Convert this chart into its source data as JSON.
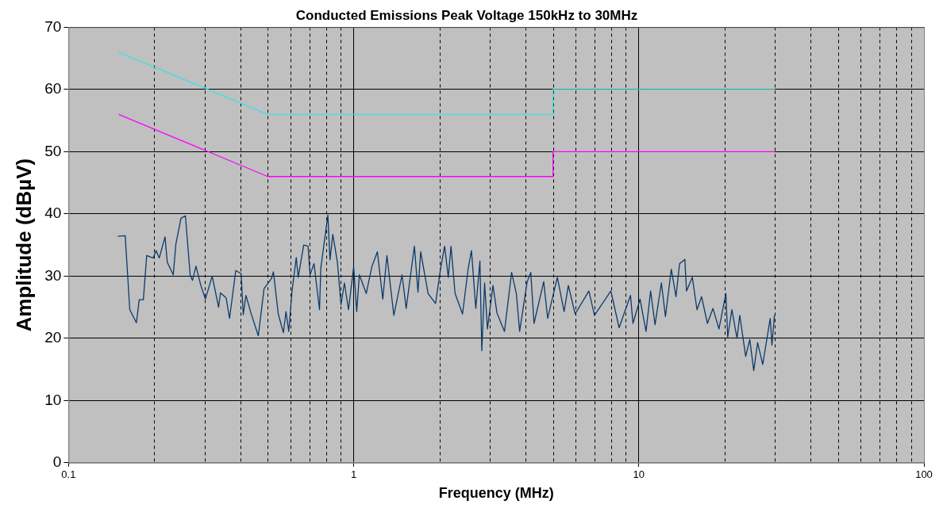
{
  "chart_data": {
    "type": "line",
    "title": "Conducted Emissions Peak Voltage 150kHz to 30MHz",
    "xlabel": "Frequency (MHz)",
    "ylabel": "Amplitude (dBµV)",
    "log": "x",
    "grid": true,
    "marker": "none",
    "line_style": "solid",
    "xlim": [
      0.1,
      100
    ],
    "xticks": [
      {
        "value": 0.1,
        "label": "0.1"
      },
      {
        "value": 0.2,
        "label": null
      },
      {
        "value": 0.3,
        "label": null
      },
      {
        "value": 0.4,
        "label": null
      },
      {
        "value": 0.5,
        "label": null
      },
      {
        "value": 0.6,
        "label": null
      },
      {
        "value": 0.7,
        "label": null
      },
      {
        "value": 0.8,
        "label": null
      },
      {
        "value": 0.9,
        "label": null
      },
      1,
      {
        "value": 2,
        "label": null
      },
      {
        "value": 3,
        "label": null
      },
      {
        "value": 4,
        "label": null
      },
      {
        "value": 5,
        "label": null
      },
      {
        "value": 6,
        "label": null
      },
      {
        "value": 7,
        "label": null
      },
      {
        "value": 8,
        "label": null
      },
      {
        "value": 9,
        "label": null
      },
      10,
      {
        "value": 20,
        "label": null
      },
      {
        "value": 30,
        "label": null
      },
      {
        "value": 40,
        "label": null
      },
      {
        "value": 50,
        "label": null
      },
      {
        "value": 60,
        "label": null
      },
      {
        "value": 70,
        "label": null
      },
      {
        "value": 80,
        "label": null
      },
      {
        "value": 90,
        "label": null
      },
      100
    ],
    "ylim": [
      0,
      70
    ],
    "yticks": [
      0,
      10,
      20,
      30,
      40,
      50,
      60,
      70
    ],
    "series": [
      {
        "color": "#40e0e0",
        "x": [
          0.15,
          0.5,
          5,
          5,
          30
        ],
        "values": [
          66,
          56,
          56,
          60,
          60
        ]
      },
      {
        "color": "#ff00ff",
        "x": [
          0.15,
          0.5,
          5,
          5,
          30
        ],
        "values": [
          56,
          46,
          46,
          50,
          50
        ]
      },
      {
        "color": "#0b3a6b",
        "x": [
          0.149,
          0.158,
          0.164,
          0.173,
          0.177,
          0.183,
          0.188,
          0.198,
          0.203,
          0.208,
          0.218,
          0.222,
          0.233,
          0.238,
          0.248,
          0.257,
          0.267,
          0.272,
          0.28,
          0.291,
          0.302,
          0.319,
          0.336,
          0.341,
          0.357,
          0.367,
          0.386,
          0.403,
          0.41,
          0.419,
          0.436,
          0.463,
          0.485,
          0.515,
          0.523,
          0.544,
          0.567,
          0.579,
          0.592,
          0.608,
          0.629,
          0.639,
          0.668,
          0.692,
          0.703,
          0.726,
          0.759,
          0.767,
          0.812,
          0.826,
          0.845,
          0.877,
          0.903,
          0.928,
          0.959,
          1.0,
          1.025,
          1.047,
          1.107,
          1.158,
          1.211,
          1.265,
          1.308,
          1.383,
          1.478,
          1.528,
          1.633,
          1.681,
          1.718,
          1.824,
          1.937,
          2.016,
          2.084,
          2.147,
          2.195,
          2.268,
          2.409,
          2.519,
          2.589,
          2.681,
          2.772,
          2.815,
          2.879,
          2.945,
          3.08,
          3.18,
          3.38,
          3.58,
          3.72,
          3.82,
          4.06,
          4.18,
          4.29,
          4.64,
          4.79,
          5.18,
          5.47,
          5.66,
          5.98,
          6.68,
          6.99,
          7.98,
          8.53,
          9.35,
          9.54,
          10.1,
          10.6,
          11.0,
          11.4,
          12.0,
          12.4,
          13.0,
          13.5,
          13.9,
          14.5,
          14.7,
          15.4,
          16.0,
          16.6,
          17.4,
          18.2,
          19.1,
          20.2,
          20.5,
          21.2,
          22.1,
          22.6,
          23.7,
          24.5,
          25.3,
          26.1,
          27.2,
          28.2,
          28.9,
          29.3,
          29.9
        ],
        "values": [
          36.4,
          36.5,
          24.6,
          22.5,
          26.2,
          26.2,
          33.3,
          32.9,
          34.1,
          32.9,
          36.3,
          32.2,
          30.2,
          35.2,
          39.3,
          39.7,
          30.2,
          29.3,
          31.6,
          28.5,
          26.3,
          30.0,
          25.0,
          27.3,
          26.5,
          23.2,
          30.9,
          30.4,
          23.8,
          26.9,
          24.1,
          20.4,
          28.0,
          29.6,
          30.7,
          23.9,
          20.9,
          24.3,
          21.1,
          27.6,
          33.0,
          29.8,
          35.0,
          34.8,
          30.2,
          32.0,
          24.6,
          31.3,
          39.8,
          32.6,
          36.7,
          32.2,
          25.4,
          28.9,
          24.6,
          31.5,
          24.3,
          30.2,
          27.2,
          31.5,
          33.9,
          26.3,
          33.3,
          23.7,
          30.2,
          24.8,
          34.8,
          27.4,
          33.9,
          27.2,
          25.6,
          31.1,
          34.8,
          29.8,
          34.8,
          27.2,
          23.9,
          31.1,
          34.1,
          24.8,
          32.4,
          18.0,
          28.9,
          21.5,
          28.5,
          24.1,
          21.1,
          30.6,
          27.2,
          21.1,
          29.1,
          30.6,
          22.4,
          29.1,
          23.2,
          29.8,
          24.3,
          28.5,
          23.9,
          27.6,
          23.7,
          27.6,
          21.7,
          26.9,
          22.4,
          26.3,
          21.1,
          27.6,
          22.2,
          28.9,
          23.5,
          31.1,
          26.7,
          32.0,
          32.7,
          27.6,
          29.8,
          24.6,
          26.7,
          22.4,
          24.8,
          21.5,
          27.2,
          20.2,
          24.6,
          20.0,
          23.7,
          17.1,
          19.8,
          14.8,
          19.3,
          15.8,
          20.2,
          23.2,
          18.9,
          23.7
        ]
      }
    ]
  }
}
